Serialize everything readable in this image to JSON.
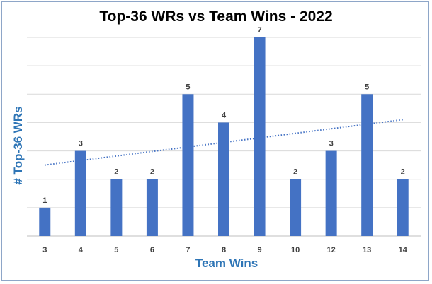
{
  "colors": {
    "bar": "#4472c4",
    "trendline": "#4472c4",
    "axis_title": "#2e75b6",
    "gridline": "#d9d9d9",
    "frame": "#8ea6c8"
  },
  "chart_data": {
    "type": "bar",
    "title": "Top-36 WRs vs Team Wins - 2022",
    "xlabel": "Team Wins",
    "ylabel": "# Top-36 WRs",
    "categories": [
      "3",
      "4",
      "5",
      "6",
      "7",
      "8",
      "9",
      "10",
      "12",
      "13",
      "14"
    ],
    "values": [
      1,
      3,
      2,
      2,
      5,
      4,
      7,
      2,
      3,
      5,
      2
    ],
    "data_labels": [
      "1",
      "3",
      "2",
      "2",
      "5",
      "4",
      "7",
      "2",
      "3",
      "5",
      "2"
    ],
    "ylim": [
      0,
      7
    ],
    "grid": true,
    "y_tick_labels_shown": false,
    "legend": "none",
    "trendline": {
      "type": "linear",
      "style": "dotted",
      "start": 2.5,
      "end": 4.1
    }
  }
}
